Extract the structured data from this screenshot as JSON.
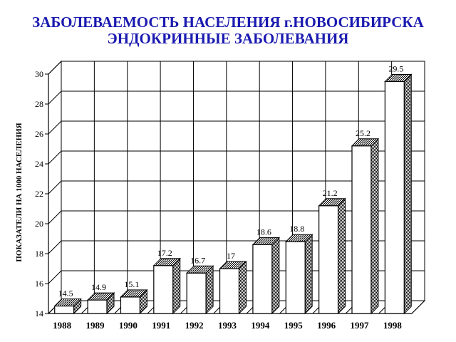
{
  "header": {
    "title_line1": "ЗАБОЛЕВАЕМОСТЬ НАСЕЛЕНИЯ г.НОВОСИБИРСКА",
    "title_line2": "ЭНДОКРИННЫЕ ЗАБОЛЕВАНИЯ"
  },
  "chart_data": {
    "type": "bar",
    "title": "ЗАБОЛЕВАЕМОСТЬ НАСЕЛЕНИЯ г.НОВОСИБИРСКА ЭНДОКРИННЫЕ ЗАБОЛЕВАНИЯ",
    "xlabel": "",
    "ylabel": "ПОКАЗАТЕЛИ НА 1000 НАСЕЛЕНИЯ",
    "categories": [
      "1988",
      "1989",
      "1990",
      "1991",
      "1992",
      "1993",
      "1994",
      "1995",
      "1996",
      "1997",
      "1998"
    ],
    "values": [
      14.5,
      14.9,
      15.1,
      17.2,
      16.7,
      17,
      18.6,
      18.8,
      21.2,
      25.2,
      29.5
    ],
    "value_labels": [
      "14.5",
      "14.9",
      "15.1",
      "17.2",
      "16.7",
      "17",
      "18.6",
      "18.8",
      "21.2",
      "25.2",
      "29.5"
    ],
    "ylim": [
      14,
      30
    ],
    "yticks": [
      14,
      16,
      18,
      20,
      22,
      24,
      26,
      28,
      30
    ],
    "grid": true,
    "style": "3d-bars",
    "colors": {
      "bar_face": "#ffffff",
      "outline": "#000000",
      "title": "#1a1ab0"
    }
  }
}
